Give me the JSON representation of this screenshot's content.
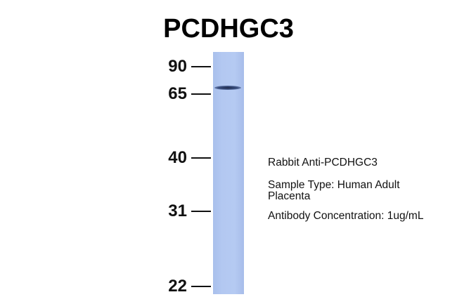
{
  "title": "PCDHGC3",
  "markers": [
    "90",
    "65",
    "40",
    "31",
    "22"
  ],
  "band_kda": 68,
  "lane_color": "#b3c8f1",
  "info": {
    "antibody": "Rabbit Anti-PCDHGC3",
    "sample_type": "Sample Type: Human Adult Placenta",
    "concentration": "Antibody Concentration: 1ug/mL"
  }
}
